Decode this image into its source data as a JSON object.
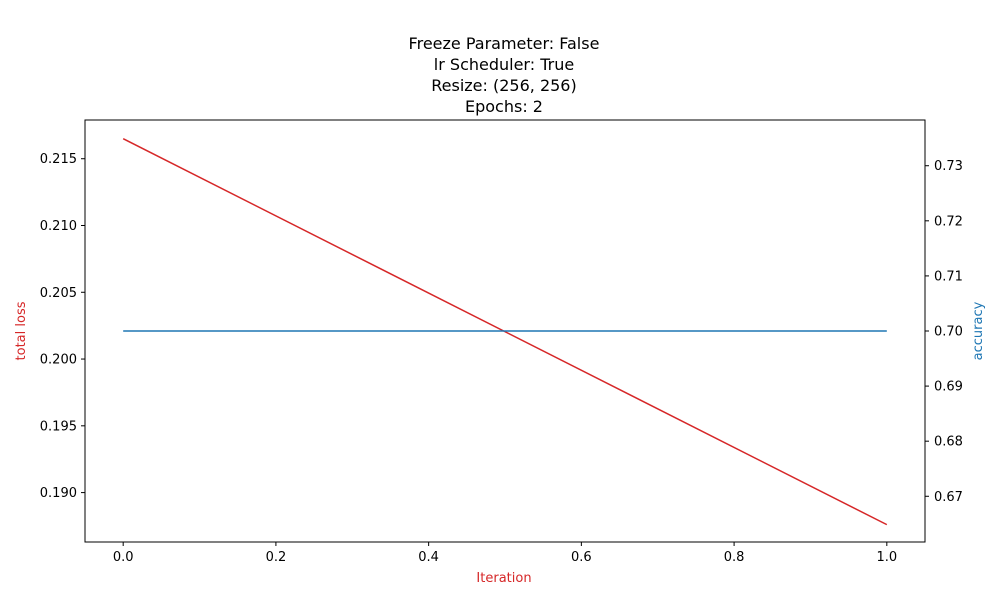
{
  "chart_data": {
    "type": "line",
    "title_lines": [
      "Freeze Parameter: False",
      "lr Scheduler: True",
      "Resize: (256, 256)",
      "Epochs: 2"
    ],
    "xlabel": "Iteration",
    "ylabel_left": "total loss",
    "ylabel_right": "accuracy",
    "xlim": [
      -0.05,
      1.05
    ],
    "ylim_left": [
      0.1863,
      0.2179
    ],
    "ylim_right": [
      0.6617,
      0.7383
    ],
    "x_ticks": [
      0.0,
      0.2,
      0.4,
      0.6,
      0.8,
      1.0
    ],
    "x_tick_labels": [
      "0.0",
      "0.2",
      "0.4",
      "0.6",
      "0.8",
      "1.0"
    ],
    "y_left_ticks": [
      0.19,
      0.195,
      0.2,
      0.205,
      0.21,
      0.215
    ],
    "y_left_tick_labels": [
      "0.190",
      "0.195",
      "0.200",
      "0.205",
      "0.210",
      "0.215"
    ],
    "y_right_ticks": [
      0.67,
      0.68,
      0.69,
      0.7,
      0.71,
      0.72,
      0.73
    ],
    "y_right_tick_labels": [
      "0.67",
      "0.68",
      "0.69",
      "0.70",
      "0.71",
      "0.72",
      "0.73"
    ],
    "grid": false,
    "series": [
      {
        "axis": "left",
        "color": "#d62728",
        "x": [
          0.0,
          1.0
        ],
        "y": [
          0.2165,
          0.1876
        ]
      },
      {
        "axis": "right",
        "color": "#1f77b4",
        "x": [
          0.0,
          1.0
        ],
        "y": [
          0.7,
          0.7
        ]
      }
    ],
    "label_colors": {
      "xlabel": "#d62728",
      "ylabel_left": "#d62728",
      "ylabel_right": "#1f77b4"
    }
  }
}
